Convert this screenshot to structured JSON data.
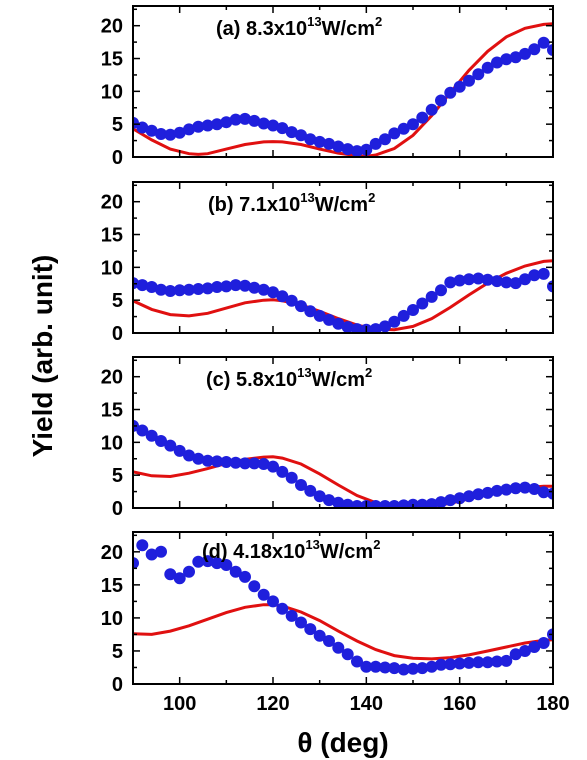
{
  "chart_data": [
    {
      "type": "scatter",
      "label": {
        "pre": "(a) 8.3x10",
        "sup": "13",
        "post": "W/cm",
        "sup2": "2"
      },
      "xlim": [
        90,
        180
      ],
      "ylim": [
        0,
        23
      ],
      "yticks": [
        0,
        5,
        10,
        15,
        20
      ],
      "series": [
        {
          "kind": "points",
          "x": [
            90,
            92,
            94,
            96,
            98,
            100,
            102,
            104,
            106,
            108,
            110,
            112,
            114,
            116,
            118,
            120,
            122,
            124,
            126,
            128,
            130,
            132,
            134,
            136,
            138,
            140,
            142,
            144,
            146,
            148,
            150,
            152,
            154,
            156,
            158,
            160,
            162,
            164,
            166,
            168,
            170,
            172,
            174,
            176,
            178,
            180
          ],
          "y": [
            5.2,
            4.5,
            4.0,
            3.5,
            3.4,
            3.7,
            4.2,
            4.6,
            4.8,
            5.0,
            5.3,
            5.7,
            5.8,
            5.5,
            5.1,
            4.8,
            4.4,
            3.8,
            3.3,
            2.7,
            2.3,
            2.0,
            1.6,
            1.2,
            0.9,
            1.1,
            2.0,
            2.7,
            3.6,
            4.3,
            5.0,
            6.0,
            7.2,
            8.6,
            9.8,
            10.7,
            11.6,
            12.6,
            13.6,
            14.4,
            14.9,
            15.2,
            15.7,
            16.4,
            17.4,
            16.3
          ]
        },
        {
          "kind": "line",
          "x": [
            90,
            94,
            98,
            102,
            104,
            106,
            110,
            114,
            118,
            120,
            122,
            126,
            130,
            134,
            138,
            140,
            142,
            146,
            150,
            154,
            158,
            162,
            166,
            170,
            174,
            178,
            180
          ],
          "y": [
            4.3,
            2.6,
            1.2,
            0.5,
            0.4,
            0.5,
            1.2,
            1.9,
            2.3,
            2.35,
            2.3,
            1.9,
            1.2,
            0.6,
            0.2,
            0.1,
            0.3,
            1.3,
            3.3,
            6.3,
            9.8,
            13.2,
            16.1,
            18.3,
            19.6,
            20.2,
            20.3
          ]
        }
      ]
    },
    {
      "type": "scatter",
      "label": {
        "pre": "(b) 7.1x10",
        "sup": "13",
        "post": "W/cm",
        "sup2": "2"
      },
      "xlim": [
        90,
        180
      ],
      "ylim": [
        0,
        23
      ],
      "yticks": [
        0,
        5,
        10,
        15,
        20
      ],
      "series": [
        {
          "kind": "points",
          "x": [
            90,
            92,
            94,
            96,
            98,
            100,
            102,
            104,
            106,
            108,
            110,
            112,
            114,
            116,
            118,
            120,
            122,
            124,
            126,
            128,
            130,
            132,
            134,
            136,
            138,
            140,
            142,
            144,
            146,
            148,
            150,
            152,
            154,
            156,
            158,
            160,
            162,
            164,
            166,
            168,
            170,
            172,
            174,
            176,
            178,
            180
          ],
          "y": [
            7.6,
            7.3,
            7.0,
            6.6,
            6.4,
            6.5,
            6.6,
            6.7,
            6.8,
            7.0,
            7.1,
            7.3,
            7.2,
            6.9,
            6.6,
            6.2,
            5.6,
            4.9,
            4.1,
            3.3,
            2.6,
            2.0,
            1.4,
            0.9,
            0.6,
            0.5,
            0.6,
            1.0,
            1.7,
            2.6,
            3.5,
            4.5,
            5.5,
            6.5,
            7.7,
            8.0,
            8.2,
            8.3,
            8.1,
            7.9,
            7.7,
            7.6,
            8.2,
            8.8,
            9.0,
            7.1
          ]
        },
        {
          "kind": "line",
          "x": [
            90,
            94,
            98,
            102,
            106,
            110,
            114,
            118,
            120,
            122,
            126,
            130,
            134,
            138,
            142,
            146,
            150,
            154,
            158,
            162,
            166,
            170,
            174,
            178,
            180
          ],
          "y": [
            4.9,
            3.6,
            2.8,
            2.6,
            3.0,
            3.8,
            4.6,
            5.0,
            5.05,
            4.9,
            4.3,
            3.3,
            2.2,
            1.2,
            0.6,
            0.5,
            1.0,
            2.2,
            3.9,
            5.8,
            7.6,
            9.1,
            10.2,
            10.9,
            11.0
          ]
        }
      ]
    },
    {
      "type": "scatter",
      "label": {
        "pre": "(c) 5.8x10",
        "sup": "13",
        "post": "W/cm",
        "sup2": "2"
      },
      "xlim": [
        90,
        180
      ],
      "ylim": [
        0,
        23
      ],
      "yticks": [
        0,
        5,
        10,
        15,
        20
      ],
      "series": [
        {
          "kind": "points",
          "x": [
            90,
            92,
            94,
            96,
            98,
            100,
            102,
            104,
            106,
            108,
            110,
            112,
            114,
            116,
            118,
            120,
            122,
            124,
            126,
            128,
            130,
            132,
            134,
            136,
            138,
            140,
            142,
            144,
            146,
            148,
            150,
            152,
            154,
            156,
            158,
            160,
            162,
            164,
            166,
            168,
            170,
            172,
            174,
            176,
            178,
            180
          ],
          "y": [
            12.5,
            11.8,
            11.0,
            10.2,
            9.5,
            8.7,
            8.0,
            7.5,
            7.2,
            7.1,
            7.0,
            6.9,
            6.8,
            6.8,
            6.7,
            6.3,
            5.5,
            4.6,
            3.5,
            2.6,
            1.8,
            1.2,
            0.8,
            0.5,
            0.3,
            0.3,
            0.3,
            0.3,
            0.3,
            0.4,
            0.5,
            0.5,
            0.6,
            0.9,
            1.2,
            1.5,
            1.8,
            2.1,
            2.3,
            2.6,
            2.8,
            3.0,
            3.1,
            2.9,
            2.4,
            2.2
          ]
        },
        {
          "kind": "line",
          "x": [
            90,
            94,
            98,
            102,
            106,
            110,
            114,
            118,
            120,
            122,
            126,
            130,
            134,
            138,
            142,
            146,
            150,
            154,
            158,
            162,
            166,
            170,
            174,
            178,
            180
          ],
          "y": [
            5.5,
            4.9,
            4.8,
            5.3,
            6.0,
            6.8,
            7.4,
            7.75,
            7.8,
            7.6,
            6.7,
            5.2,
            3.5,
            1.9,
            0.8,
            0.1,
            0.0,
            0.3,
            0.7,
            1.4,
            2.1,
            2.7,
            3.1,
            3.3,
            3.3
          ]
        }
      ]
    },
    {
      "type": "scatter",
      "label": {
        "pre": "(d) 4.18x10",
        "sup": "13",
        "post": "W/cm",
        "sup2": "2"
      },
      "xlim": [
        90,
        180
      ],
      "ylim": [
        0,
        23
      ],
      "yticks": [
        0,
        5,
        10,
        15,
        20
      ],
      "series": [
        {
          "kind": "points",
          "x": [
            90,
            92,
            94,
            96,
            98,
            100,
            102,
            104,
            106,
            108,
            110,
            112,
            114,
            116,
            118,
            120,
            122,
            124,
            126,
            128,
            130,
            132,
            134,
            136,
            138,
            140,
            142,
            144,
            146,
            148,
            150,
            152,
            154,
            156,
            158,
            160,
            162,
            164,
            166,
            168,
            170,
            172,
            174,
            176,
            178,
            180
          ],
          "y": [
            18.3,
            21.0,
            19.6,
            20.0,
            16.6,
            16.0,
            17.0,
            18.5,
            18.6,
            18.3,
            18.0,
            17.0,
            16.2,
            14.8,
            13.5,
            12.5,
            11.4,
            10.3,
            9.3,
            8.3,
            7.3,
            6.5,
            5.5,
            4.5,
            3.4,
            2.6,
            2.6,
            2.5,
            2.4,
            2.2,
            2.3,
            2.4,
            2.6,
            2.9,
            3.0,
            3.1,
            3.2,
            3.3,
            3.3,
            3.4,
            3.5,
            4.5,
            5.0,
            5.6,
            6.2,
            7.5
          ]
        },
        {
          "kind": "line",
          "x": [
            90,
            94,
            98,
            102,
            106,
            110,
            114,
            118,
            120,
            122,
            126,
            130,
            134,
            138,
            142,
            146,
            150,
            154,
            158,
            162,
            166,
            170,
            174,
            178,
            180
          ],
          "y": [
            7.6,
            7.5,
            8.0,
            8.8,
            9.8,
            10.8,
            11.6,
            12.0,
            12.0,
            11.8,
            10.9,
            9.6,
            8.0,
            6.5,
            5.2,
            4.3,
            3.9,
            3.8,
            4.0,
            4.4,
            5.0,
            5.6,
            6.2,
            6.6,
            6.7
          ]
        }
      ]
    }
  ],
  "axes": {
    "xticks": [
      100,
      120,
      140,
      160,
      180
    ],
    "xlabel": "θ (deg)",
    "ylabel": "Yield (arb. unit)"
  },
  "colors": {
    "points": "#1f1fdc",
    "line": "#e01010"
  }
}
